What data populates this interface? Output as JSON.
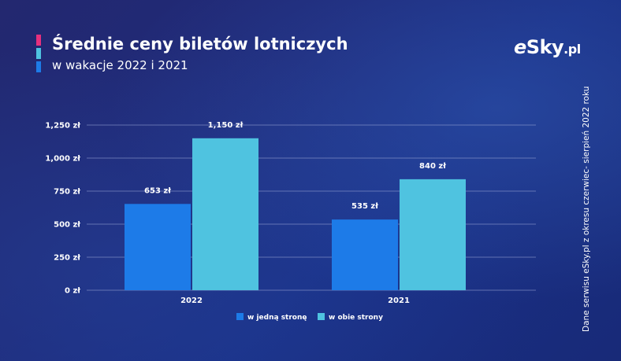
{
  "header": {
    "title": "Średnie ceny biletów lotniczych",
    "subtitle": "w wakacje 2022 i 2021"
  },
  "logo": {
    "e": "e",
    "main": "Sky",
    "tld": ".pl"
  },
  "side_note": "Dane serwisu eSky.pl z okresu czerwiec- sierpień 2022 roku",
  "colors": {
    "accent_pink": "#e6307d",
    "one_way": "#1d7be8",
    "round_trip": "#4fc3e0",
    "gridline": "#9aa6d6"
  },
  "chart_data": {
    "type": "bar",
    "categories": [
      "2022",
      "2021"
    ],
    "series": [
      {
        "name": "w jedną stronę",
        "values": [
          653,
          535
        ],
        "labels": [
          "653 zł",
          "535 zł"
        ]
      },
      {
        "name": "w obie strony",
        "values": [
          1150,
          840
        ],
        "labels": [
          "1,150 zł",
          "840 zł"
        ]
      }
    ],
    "ylim": [
      0,
      1250
    ],
    "yticks": [
      0,
      250,
      500,
      750,
      1000,
      1250
    ],
    "ytick_labels": [
      "0 zł",
      "250 zł",
      "500 zł",
      "750 zł",
      "1,000 zł",
      "1,250 zł"
    ],
    "grid": true,
    "legend_position": "bottom-center"
  }
}
